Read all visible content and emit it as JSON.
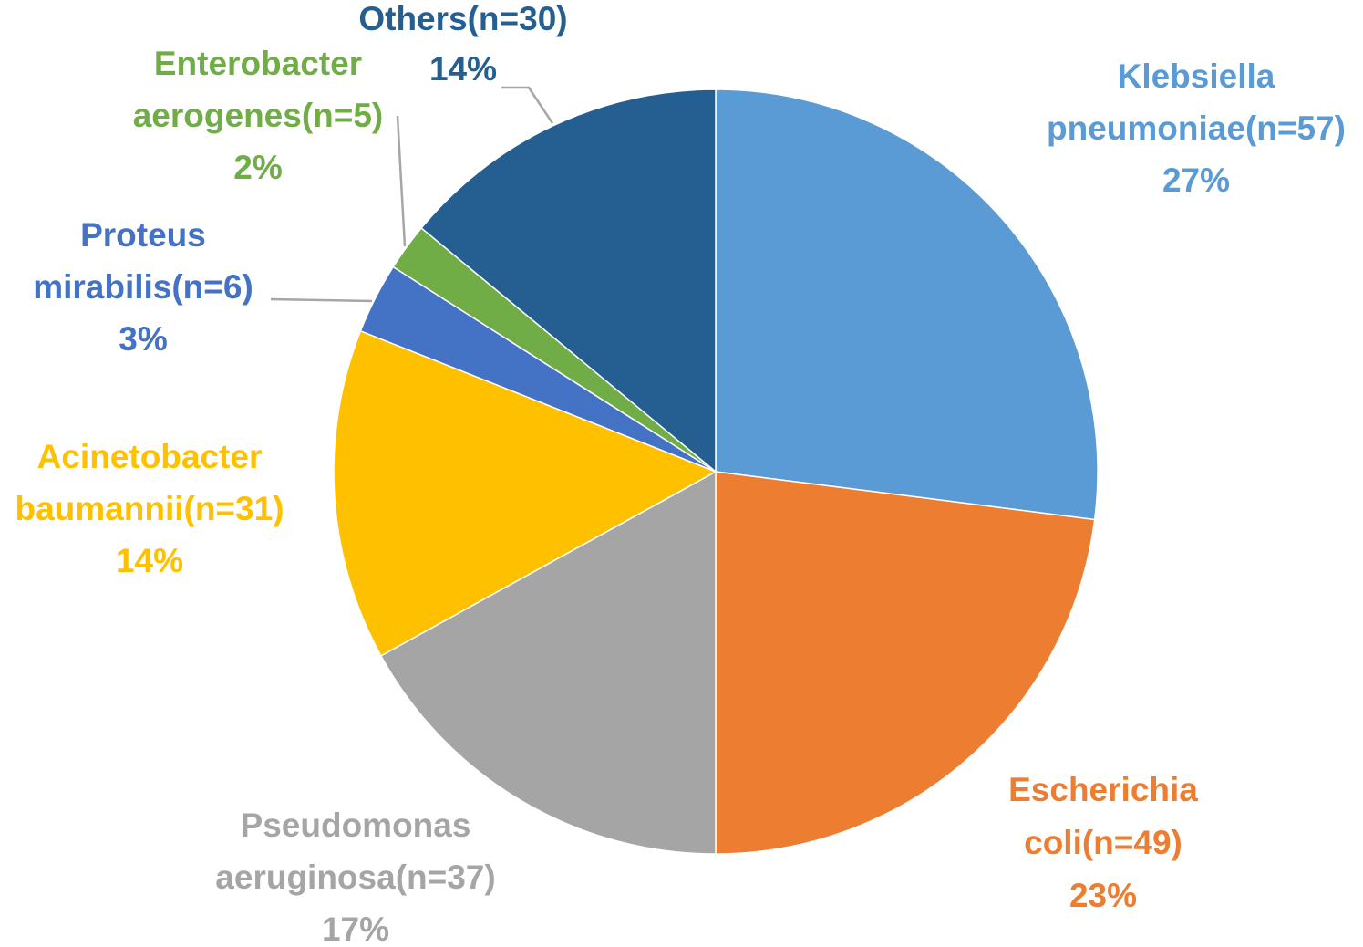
{
  "chart_data": {
    "type": "pie",
    "title": "",
    "start_angle_deg": 0,
    "direction": "clockwise",
    "legend": "none",
    "slices": [
      {
        "category": "Klebsiella pneumoniae",
        "n": 57,
        "value": 27,
        "label_lines": [
          "Klebsiella",
          "pneumoniae(n=57)",
          "27%"
        ],
        "color": "#5b9bd5"
      },
      {
        "category": "Escherichia coli",
        "n": 49,
        "value": 23,
        "label_lines": [
          "Escherichia",
          "coli(n=49)",
          "23%"
        ],
        "color": "#ed7d31"
      },
      {
        "category": "Pseudomonas aeruginosa",
        "n": 37,
        "value": 17,
        "label_lines": [
          "Pseudomonas",
          "aeruginosa(n=37)",
          "17%"
        ],
        "color": "#a5a5a5"
      },
      {
        "category": "Acinetobacter baumannii",
        "n": 31,
        "value": 14,
        "label_lines": [
          "Acinetobacter",
          "baumannii(n=31)",
          "14%"
        ],
        "color": "#ffc000"
      },
      {
        "category": "Proteus mirabilis",
        "n": 6,
        "value": 3,
        "label_lines": [
          "Proteus",
          "mirabilis(n=6)",
          "3%"
        ],
        "color": "#4472c4"
      },
      {
        "category": "Enterobacter aerogenes",
        "n": 5,
        "value": 2,
        "label_lines": [
          "Enterobacter",
          "aerogenes(n=5)",
          "2%"
        ],
        "color": "#70ad47"
      },
      {
        "category": "Others",
        "n": 30,
        "value": 14,
        "label_lines": [
          "Others(n=30)",
          "14%"
        ],
        "color": "#255e91"
      }
    ]
  }
}
